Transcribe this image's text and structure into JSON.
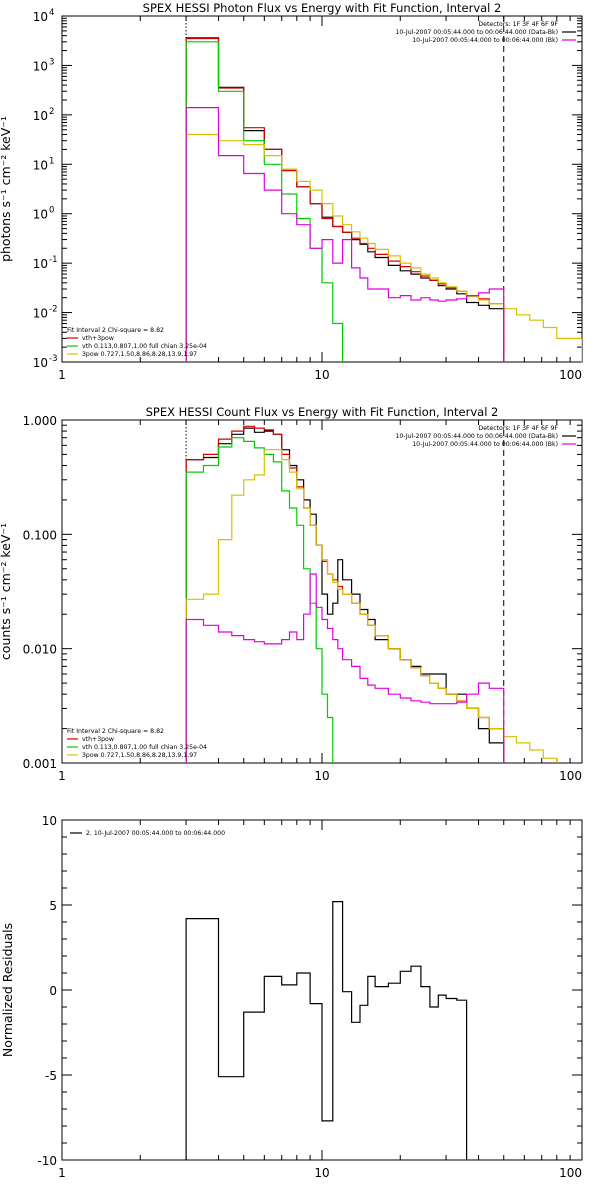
{
  "chart_data": [
    {
      "type": "line",
      "title": "SPEX HESSI Photon Flux vs Energy with Fit Function, Interval 2",
      "ylabel": "photons s⁻¹ cm⁻² keV⁻¹",
      "xlabel": "",
      "xscale": "log",
      "yscale": "log",
      "xlim": [
        1,
        100
      ],
      "ylim": [
        0.001,
        10000
      ],
      "x_ticks": [
        1,
        10,
        100
      ],
      "x_tick_labels": [
        "1",
        "10",
        "100"
      ],
      "y_ticks": [
        0.001,
        0.01,
        0.1,
        1,
        10,
        100,
        1000,
        10000
      ],
      "y_tick_labels": [
        "10",
        "10",
        "10",
        "10",
        "10",
        "10",
        "10",
        "10"
      ],
      "y_tick_exponents": [
        "-3",
        "-2",
        "-1",
        "0",
        "1",
        "2",
        "3",
        "4"
      ],
      "vlines": [
        {
          "x": 3.0,
          "style": "dotted"
        },
        {
          "x": 50.0,
          "style": "dashed"
        }
      ],
      "info_lines": [
        "Detectors: 1F 3F 4F 6F 9F",
        "10-Jul-2007 00:05:44.000 to 00:06:44.000 (Data-Bk)",
        "10-Jul-2007 00:05:44.000 to 00:06:44.000 (Bk)"
      ],
      "info_colors": [
        "",
        "#000000",
        "#e000e0"
      ],
      "fit_text": [
        "Fit Interval 2   Chi-square = 8.82",
        "vth+3pow",
        "vth 0.113,0.807,1.00  full chian 3.25e-04",
        "3pow 0.727,1.50,8.86,8.28,13.9,1.97"
      ],
      "fit_colors": [
        "",
        "#d40000",
        "#00cc00",
        "#d8c000"
      ],
      "edges": [
        3.0,
        4.0,
        5.0,
        6.0,
        7.0,
        8.0,
        9.0,
        10.0,
        11.0,
        12.0,
        13.0,
        14.0,
        15.0,
        16.0,
        18.0,
        20.0,
        22.0,
        24.0,
        26.0,
        28.0,
        30.0,
        33.0,
        36.0,
        40.0,
        44.0,
        50.0,
        56.0,
        63.0,
        71.0,
        80.0,
        100.0
      ],
      "series": [
        {
          "color": "#000000",
          "values": [
            3600,
            360,
            48,
            20,
            7.5,
            3.5,
            1.6,
            0.85,
            0.55,
            0.42,
            0.3,
            0.24,
            0.17,
            0.13,
            0.09,
            0.07,
            0.06,
            0.05,
            0.045,
            0.035,
            0.03,
            0.024,
            0.016,
            0.014,
            0.012
          ]
        },
        {
          "color": "#d40000",
          "values": [
            3500,
            350,
            55,
            20,
            7.5,
            3.5,
            1.6,
            0.8,
            0.55,
            0.42,
            0.32,
            0.25,
            0.2,
            0.15,
            0.11,
            0.085,
            0.067,
            0.055,
            0.045,
            0.038,
            0.032,
            0.027,
            0.022,
            0.019,
            0.015
          ]
        },
        {
          "color": "#00cc00",
          "values": [
            3000,
            300,
            30,
            10,
            2.5,
            0.8,
            0.2,
            0.04,
            0.006
          ]
        },
        {
          "color": "#d8c000",
          "values": [
            40,
            30,
            25,
            15,
            8,
            4.5,
            3.0,
            1.6,
            0.9,
            0.6,
            0.43,
            0.32,
            0.25,
            0.19,
            0.14,
            0.1,
            0.08,
            0.06,
            0.05,
            0.04,
            0.033,
            0.027,
            0.021,
            0.018,
            0.015,
            0.012,
            0.009,
            0.007,
            0.005,
            0.003
          ]
        },
        {
          "color": "#e000e0",
          "values": [
            140,
            15,
            6.5,
            3.0,
            1.0,
            0.6,
            0.2,
            0.3,
            0.1,
            0.3,
            0.08,
            0.05,
            0.03,
            0.03,
            0.02,
            0.022,
            0.018,
            0.02,
            0.018,
            0.017,
            0.018,
            0.019,
            0.022,
            0.025,
            0.03
          ]
        }
      ]
    },
    {
      "type": "line",
      "title": "SPEX HESSI Count Flux vs Energy with Fit Function, Interval 2",
      "ylabel": "counts s⁻¹ cm⁻² keV⁻¹",
      "xlabel": "",
      "xscale": "log",
      "yscale": "log",
      "xlim": [
        1,
        100
      ],
      "ylim": [
        0.001,
        1.0
      ],
      "x_ticks": [
        1,
        10,
        100
      ],
      "x_tick_labels": [
        "1",
        "10",
        "100"
      ],
      "y_ticks": [
        0.001,
        0.01,
        0.1,
        1.0
      ],
      "y_tick_labels": [
        "0.001",
        "0.010",
        "0.100",
        "1.000"
      ],
      "vlines": [
        {
          "x": 3.0,
          "style": "dotted"
        },
        {
          "x": 50.0,
          "style": "dashed"
        }
      ],
      "info_lines": [
        "Detectors: 1F 3F 4F 6F 9F",
        "10-Jul-2007 00:05:44.000 to 00:06:44.000 (Data-Bk)",
        "10-Jul-2007 00:05:44.000 to 00:06:44.000 (Bk)"
      ],
      "info_colors": [
        "",
        "#000000",
        "#e000e0"
      ],
      "fit_text": [
        "Fit Interval 2   Chi-square = 8.82",
        "vth+3pow",
        "vth 0.113,0.807,1.00  full chian 3.25e-04",
        "3pow 0.727,1.50,8.86,8.28,13.9,1.97"
      ],
      "fit_colors": [
        "",
        "#d40000",
        "#00cc00",
        "#d8c000"
      ],
      "edges": [
        3.0,
        3.5,
        4.0,
        4.5,
        5.0,
        5.5,
        6.0,
        6.5,
        7.0,
        7.5,
        8.0,
        8.5,
        9.0,
        9.5,
        10.0,
        10.5,
        11.0,
        11.5,
        12.0,
        13.0,
        14.0,
        15.0,
        16.0,
        18.0,
        20.0,
        22.0,
        24.0,
        26.0,
        28.0,
        30.0,
        33.0,
        36.0,
        40.0,
        44.0,
        50.0,
        56.0,
        63.0,
        71.0,
        80.0
      ],
      "series": [
        {
          "color": "#000000",
          "values": [
            0.45,
            0.47,
            0.62,
            0.75,
            0.85,
            0.78,
            0.8,
            0.75,
            0.55,
            0.4,
            0.3,
            0.2,
            0.15,
            0.08,
            0.03,
            0.02,
            0.025,
            0.06,
            0.04,
            0.03,
            0.022,
            0.018,
            0.012,
            0.01,
            0.008,
            0.007,
            0.006,
            0.006,
            0.006,
            0.004,
            0.004,
            0.003,
            0.002,
            0.0015
          ]
        },
        {
          "color": "#d40000",
          "values": [
            0.45,
            0.5,
            0.68,
            0.8,
            0.88,
            0.85,
            0.82,
            0.75,
            0.5,
            0.38,
            0.26,
            0.17,
            0.12,
            0.08,
            0.058,
            0.045,
            0.04,
            0.035,
            0.03,
            0.025,
            0.02,
            0.016,
            0.013,
            0.01,
            0.008,
            0.0068,
            0.0058,
            0.005,
            0.0045,
            0.004,
            0.0035,
            0.003,
            0.0025,
            0.002
          ]
        },
        {
          "color": "#00cc00",
          "values": [
            0.35,
            0.4,
            0.58,
            0.7,
            0.65,
            0.57,
            0.5,
            0.43,
            0.24,
            0.17,
            0.12,
            0.05,
            0.025,
            0.01,
            0.004,
            0.0025
          ]
        },
        {
          "color": "#d8c000",
          "values": [
            0.027,
            0.03,
            0.09,
            0.22,
            0.3,
            0.33,
            0.55,
            0.55,
            0.45,
            0.35,
            0.25,
            0.17,
            0.12,
            0.08,
            0.06,
            0.045,
            0.038,
            0.033,
            0.03,
            0.025,
            0.02,
            0.016,
            0.013,
            0.01,
            0.008,
            0.0068,
            0.0058,
            0.005,
            0.0045,
            0.004,
            0.0035,
            0.003,
            0.0025,
            0.002,
            0.0017,
            0.0015,
            0.0013,
            0.0011
          ]
        },
        {
          "color": "#e000e0",
          "values": [
            0.018,
            0.016,
            0.014,
            0.013,
            0.012,
            0.0115,
            0.011,
            0.011,
            0.012,
            0.014,
            0.012,
            0.02,
            0.045,
            0.023,
            0.018,
            0.015,
            0.012,
            0.01,
            0.008,
            0.007,
            0.0055,
            0.0048,
            0.0045,
            0.004,
            0.0037,
            0.0035,
            0.0034,
            0.0033,
            0.0033,
            0.0033,
            0.0034,
            0.004,
            0.005,
            0.0045
          ]
        }
      ]
    },
    {
      "type": "line",
      "title": "",
      "ylabel": "Normalized Residuals",
      "xlabel": "",
      "xscale": "log",
      "yscale": "linear",
      "xlim": [
        1,
        100
      ],
      "ylim": [
        -10,
        10
      ],
      "x_ticks": [
        1,
        10,
        100
      ],
      "x_tick_labels": [
        "1",
        "10",
        "100"
      ],
      "y_ticks": [
        -10,
        -5,
        0,
        5,
        10
      ],
      "y_tick_labels": [
        "-10",
        "-5",
        "0",
        "5",
        "10"
      ],
      "legend": "2. 10-Jul-2007 00:05:44.000 to 00:06:44.000",
      "edges": [
        3.0,
        4.0,
        5.0,
        6.0,
        7.0,
        8.0,
        9.0,
        10.0,
        11.0,
        12.0,
        13.0,
        14.0,
        15.0,
        16.0,
        18.0,
        20.0,
        22.0,
        24.0,
        26.0,
        28.0,
        30.0,
        33.0,
        36.0,
        40.0,
        44.0,
        50.0
      ],
      "series": [
        {
          "color": "#000000",
          "values": [
            4.2,
            -5.1,
            -1.3,
            0.8,
            0.3,
            1.0,
            -0.8,
            -7.7,
            5.2,
            -0.1,
            -1.9,
            -0.9,
            0.8,
            0.2,
            0.4,
            1.1,
            1.4,
            0.2,
            -1.0,
            -0.3,
            -0.5,
            -0.6
          ]
        }
      ]
    }
  ]
}
